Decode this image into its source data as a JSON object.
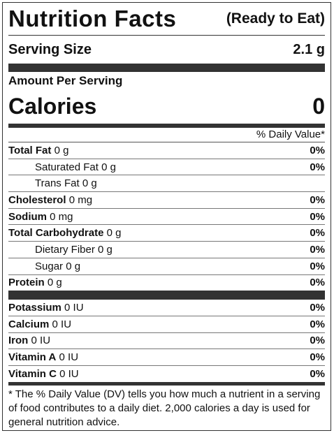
{
  "header": {
    "title": "Nutrition Facts",
    "subtitle": "(Ready to Eat)"
  },
  "serving": {
    "label": "Serving Size",
    "value": "2.1 g"
  },
  "amount_per_serving": "Amount Per Serving",
  "calories": {
    "label": "Calories",
    "value": "0"
  },
  "daily_value_header": "% Daily Value*",
  "nutrients": [
    {
      "name": "Total Fat",
      "amount": "0 g",
      "dv": "0%"
    },
    {
      "name": "Saturated Fat",
      "amount": "0 g",
      "dv": "0%"
    },
    {
      "name": "Trans Fat",
      "amount": "0 g"
    },
    {
      "name": "Cholesterol",
      "amount": "0 mg",
      "dv": "0%"
    },
    {
      "name": "Sodium",
      "amount": "0 mg",
      "dv": "0%"
    },
    {
      "name": "Total Carbohydrate",
      "amount": "0 g",
      "dv": "0%"
    },
    {
      "name": "Dietary Fiber",
      "amount": "0 g",
      "dv": "0%"
    },
    {
      "name": "Sugar",
      "amount": "0 g",
      "dv": "0%"
    },
    {
      "name": "Protein",
      "amount": "0 g",
      "dv": "0%"
    }
  ],
  "minerals": [
    {
      "name": "Potassium",
      "amount": "0 IU",
      "dv": "0%"
    },
    {
      "name": "Calcium",
      "amount": "0 IU",
      "dv": "0%"
    },
    {
      "name": "Iron",
      "amount": "0 IU",
      "dv": "0%"
    },
    {
      "name": "Vitamin A",
      "amount": "0 IU",
      "dv": "0%"
    },
    {
      "name": "Vitamin C",
      "amount": "0 IU",
      "dv": "0%"
    }
  ],
  "footnote": "* The % Daily Value (DV) tells you how much a nutrient in a serving of food contributes to a daily diet. 2,000 calories a day is used for general nutrition advice."
}
